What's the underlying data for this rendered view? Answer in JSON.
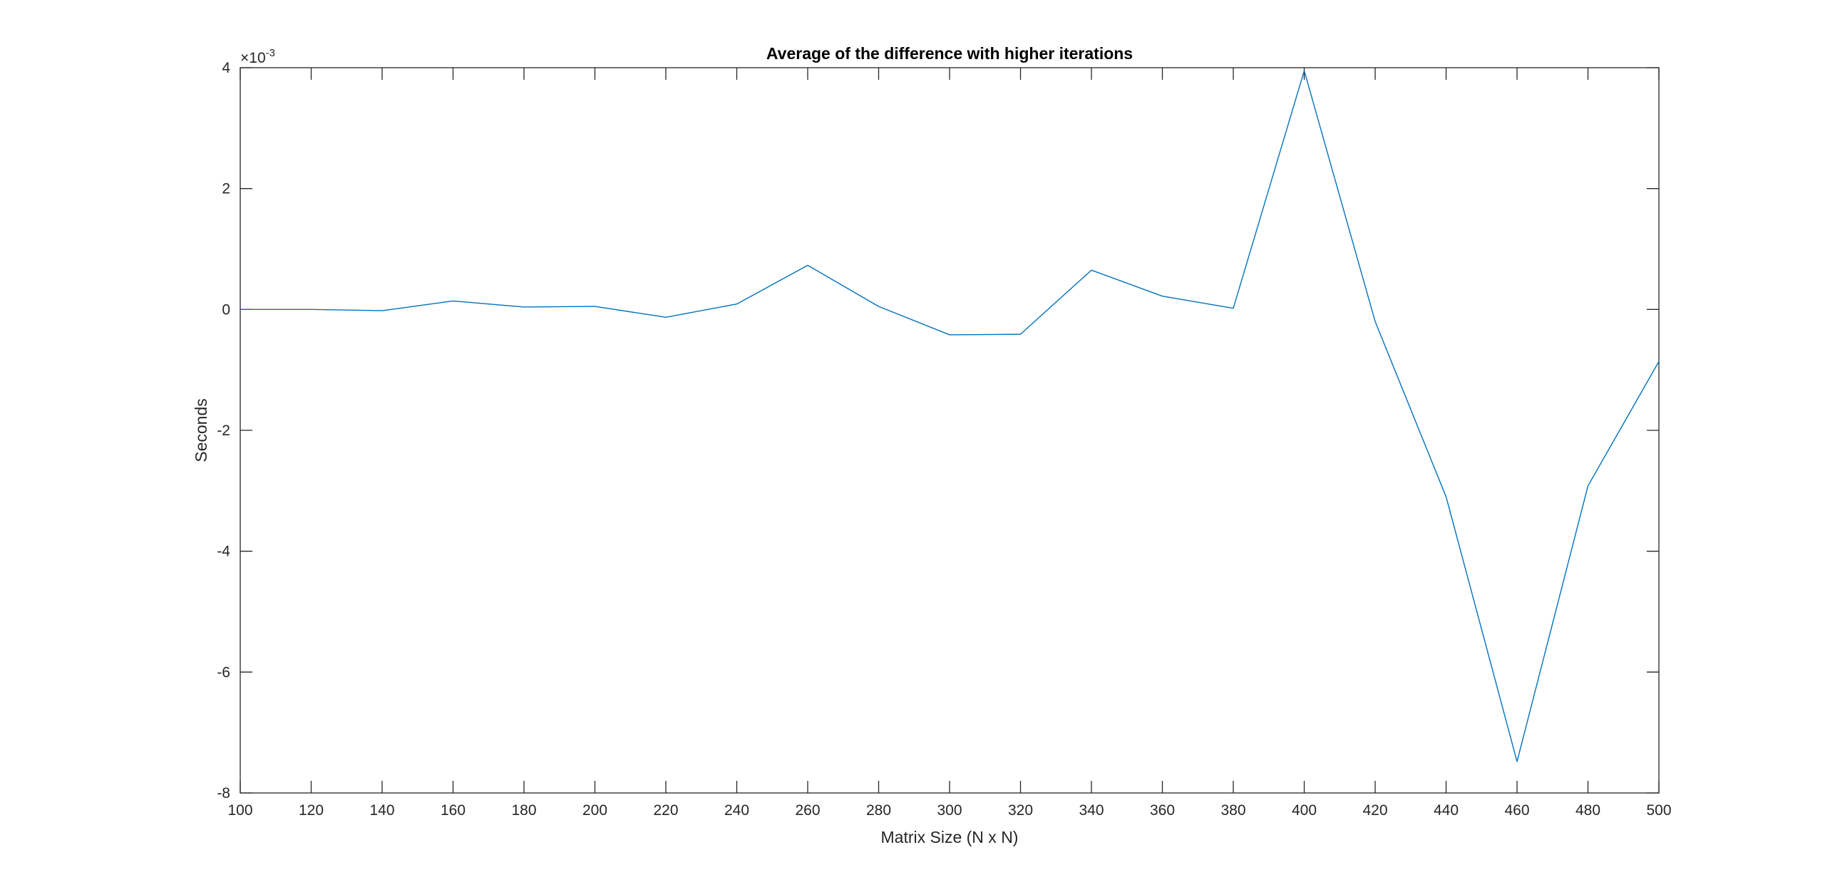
{
  "chart_data": {
    "type": "line",
    "title": "Average of the difference with higher iterations",
    "xlabel": "Matrix Size (N x N)",
    "ylabel": "Seconds",
    "xlim": [
      100,
      500
    ],
    "ylim": [
      -8,
      4
    ],
    "y_exponent_prefix": "×10",
    "y_exponent": "-3",
    "xticks": [
      100,
      120,
      140,
      160,
      180,
      200,
      220,
      240,
      260,
      280,
      300,
      320,
      340,
      360,
      380,
      400,
      420,
      440,
      460,
      480,
      500
    ],
    "yticks": [
      -8,
      -6,
      -4,
      -2,
      0,
      2,
      4
    ],
    "grid": false,
    "legend": false,
    "series": [
      {
        "color": "#0072BD",
        "x": [
          100,
          120,
          140,
          160,
          180,
          200,
          220,
          240,
          260,
          280,
          300,
          320,
          340,
          360,
          380,
          400,
          420,
          440,
          460,
          480,
          500
        ],
        "y": [
          0.0,
          0.0,
          -0.02,
          0.14,
          0.04,
          0.05,
          -0.13,
          0.09,
          0.73,
          0.05,
          -0.42,
          -0.41,
          0.65,
          0.22,
          0.02,
          3.95,
          -0.2,
          -3.1,
          -7.48,
          -2.92,
          -0.86
        ]
      }
    ]
  }
}
